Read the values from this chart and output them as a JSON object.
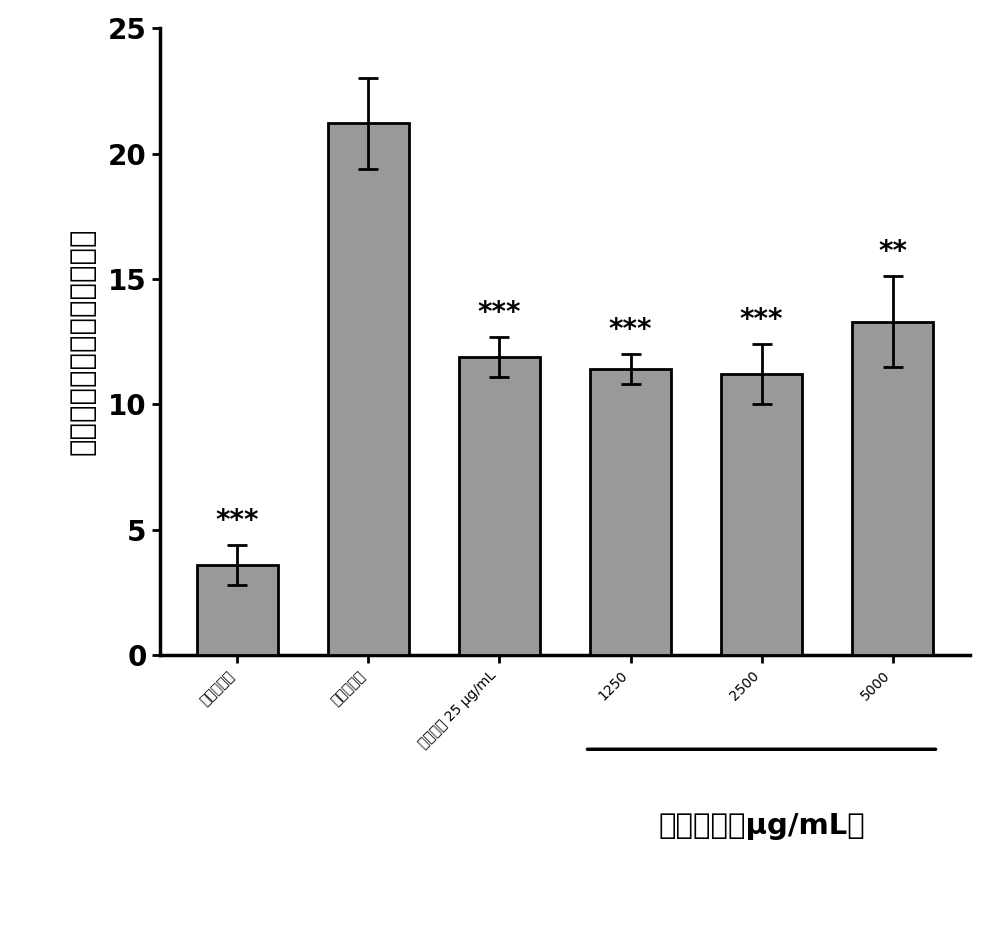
{
  "categories": [
    "正常对照组",
    "模型对照组",
    "吲哚美辛 25 μg/mL",
    "1250",
    "2500",
    "5000"
  ],
  "values": [
    3.6,
    21.2,
    11.9,
    11.4,
    11.2,
    13.3
  ],
  "errors": [
    0.8,
    1.8,
    0.8,
    0.6,
    1.2,
    1.8
  ],
  "significance": [
    "***",
    "",
    "***",
    "***",
    "***",
    "**"
  ],
  "bar_color": "#999999",
  "bar_edgecolor": "#000000",
  "ylabel": "卵黄囊中性粒细胞数目（个）",
  "ylim": [
    0,
    25
  ],
  "yticks": [
    0,
    5,
    10,
    15,
    20,
    25
  ],
  "bracket_label": "蒲公英茶（μg/mL）",
  "bracket_indices": [
    3,
    4,
    5
  ],
  "background_color": "#ffffff",
  "bar_linewidth": 2.0,
  "bar_width": 0.62,
  "tick_fontsize": 20,
  "ylabel_fontsize": 21,
  "sig_fontsize": 20,
  "bracket_fontsize": 21,
  "capsize": 7
}
